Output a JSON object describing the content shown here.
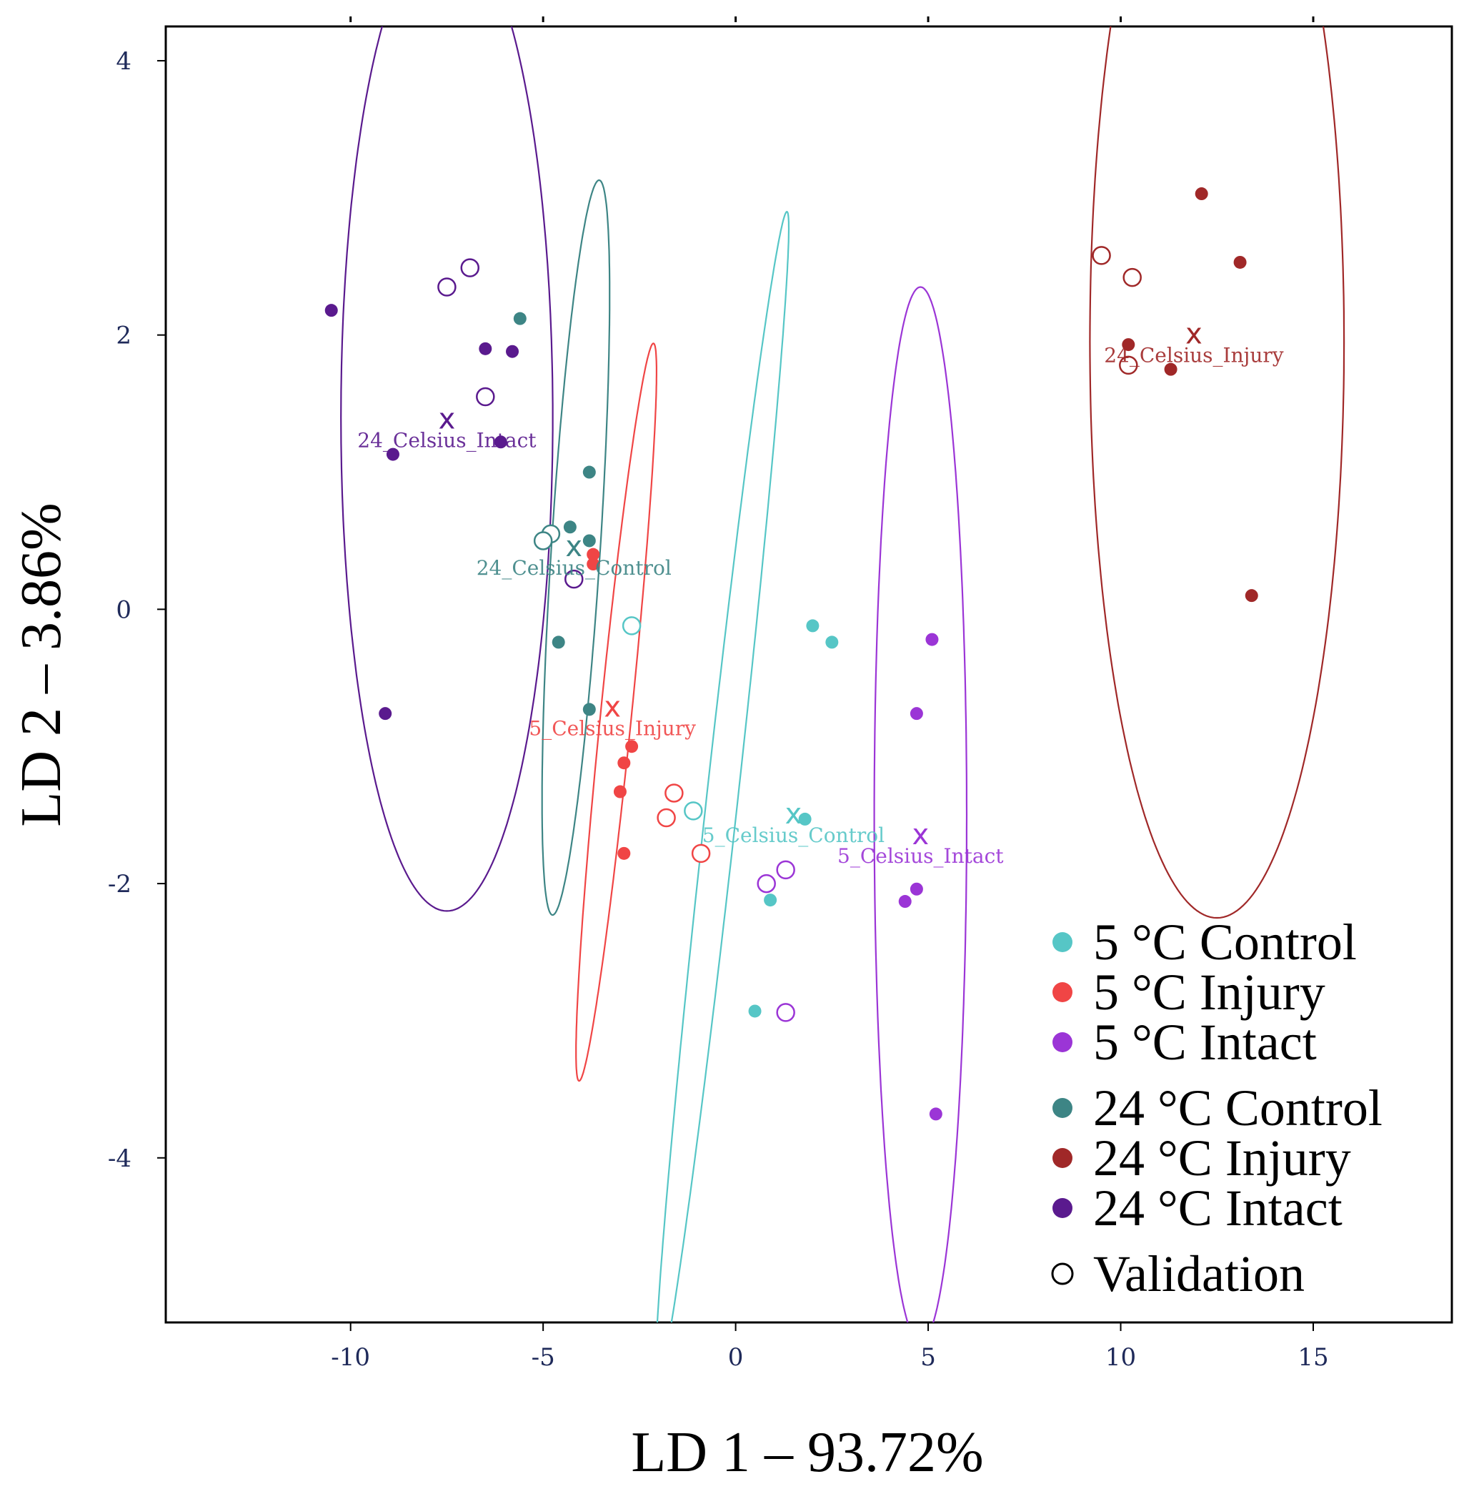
{
  "chart_data": {
    "type": "scatter",
    "xlabel": "LD 1 – 93.72%",
    "ylabel": "LD 2 – 3.86%",
    "xlim": [
      -14.8,
      18.6
    ],
    "ylim": [
      -5.2,
      4.25
    ],
    "xticks": [
      -10,
      -5,
      0,
      5,
      10,
      15
    ],
    "yticks": [
      -4,
      -2,
      0,
      2,
      4
    ],
    "grid": false,
    "legend_position": "bottom-right",
    "series": [
      {
        "name": "5 °C Control",
        "key": "c5_control",
        "color": "#56c6c6",
        "centroid": [
          1.5,
          -1.5
        ],
        "centroid_label": "5_Celsius_Control",
        "ellipse": {
          "cx": -0.35,
          "cy": -1.38,
          "rx": 4.6,
          "ry": 0.38,
          "angle_deg": 68.4
        },
        "points": [
          [
            2.0,
            -0.12
          ],
          [
            2.5,
            -0.24
          ],
          [
            1.8,
            -1.53
          ],
          [
            0.9,
            -2.12
          ],
          [
            0.5,
            -2.93
          ]
        ],
        "validation": [
          [
            -2.7,
            -0.12
          ],
          [
            -1.1,
            -1.47
          ]
        ]
      },
      {
        "name": "5 °C Injury",
        "key": "c5_injury",
        "color": "#f04545",
        "centroid": [
          -3.2,
          -0.72
        ],
        "centroid_label": "5_Celsius_Injury",
        "ellipse": {
          "cx": -3.1,
          "cy": -0.75,
          "rx": 2.86,
          "ry": 0.38,
          "angle_deg": 69.9
        },
        "points": [
          [
            -3.7,
            0.4
          ],
          [
            -3.7,
            0.33
          ],
          [
            -2.7,
            -1.0
          ],
          [
            -2.9,
            -1.12
          ],
          [
            -3.0,
            -1.33
          ],
          [
            -2.9,
            -1.78
          ]
        ],
        "validation": [
          [
            -1.6,
            -1.34
          ],
          [
            -1.8,
            -1.52
          ],
          [
            -0.9,
            -1.78
          ]
        ]
      },
      {
        "name": "5 °C Intact",
        "key": "c5_intact",
        "color": "#9b35d6",
        "centroid": [
          4.8,
          -1.65
        ],
        "centroid_label": "5_Celsius_Intact",
        "ellipse": {
          "cx": 4.8,
          "cy": -1.5,
          "rx": 1.2,
          "ry": 3.85,
          "angle_deg": 0
        },
        "points": [
          [
            5.1,
            -0.22
          ],
          [
            4.7,
            -0.76
          ],
          [
            4.7,
            -2.04
          ],
          [
            4.4,
            -2.13
          ],
          [
            5.2,
            -3.68
          ]
        ],
        "validation": [
          [
            0.8,
            -2.0
          ],
          [
            1.3,
            -1.9
          ],
          [
            1.3,
            -2.94
          ]
        ]
      },
      {
        "name": "24 °C Control",
        "key": "c24_control",
        "color": "#3d8585",
        "centroid": [
          -4.2,
          0.45
        ],
        "centroid_label": "24_Celsius_Control",
        "ellipse": {
          "cx": -4.15,
          "cy": 0.45,
          "rx": 2.75,
          "ry": 0.62,
          "angle_deg": 76.6
        },
        "points": [
          [
            -5.6,
            2.12
          ],
          [
            -3.8,
            1.0
          ],
          [
            -4.3,
            0.6
          ],
          [
            -3.8,
            0.5
          ],
          [
            -4.6,
            -0.24
          ],
          [
            -3.8,
            -0.73
          ]
        ],
        "validation": [
          [
            -4.8,
            0.55
          ],
          [
            -5.0,
            0.5
          ]
        ]
      },
      {
        "name": "24 °C Injury",
        "key": "c24_injury",
        "color": "#a02828",
        "centroid": [
          11.9,
          2.0
        ],
        "centroid_label": "24_Celsius_Injury",
        "ellipse": {
          "cx": 12.5,
          "cy": 1.95,
          "rx": 4.2,
          "ry": 3.3,
          "angle_deg": 90
        },
        "points": [
          [
            12.1,
            3.03
          ],
          [
            13.1,
            2.53
          ],
          [
            10.2,
            1.93
          ],
          [
            11.3,
            1.75
          ],
          [
            13.4,
            0.1
          ]
        ],
        "validation": [
          [
            9.5,
            2.58
          ],
          [
            10.3,
            2.42
          ],
          [
            10.2,
            1.78
          ]
        ]
      },
      {
        "name": "24 °C Intact",
        "key": "c24_intact",
        "color": "#5a1a8e",
        "centroid": [
          -7.5,
          1.38
        ],
        "centroid_label": "24_Celsius_Intact",
        "ellipse": {
          "cx": -7.5,
          "cy": 1.4,
          "rx": 3.6,
          "ry": 2.75,
          "angle_deg": 90
        },
        "points": [
          [
            -10.5,
            2.18
          ],
          [
            -6.5,
            1.9
          ],
          [
            -5.8,
            1.88
          ],
          [
            -8.9,
            1.13
          ],
          [
            -6.1,
            1.22
          ],
          [
            -9.1,
            -0.76
          ]
        ],
        "validation": [
          [
            -7.5,
            2.35
          ],
          [
            -6.9,
            2.49
          ],
          [
            -6.5,
            1.55
          ],
          [
            -4.2,
            0.22
          ]
        ]
      }
    ],
    "validation_label": "Validation",
    "centroid_marker": "x"
  }
}
